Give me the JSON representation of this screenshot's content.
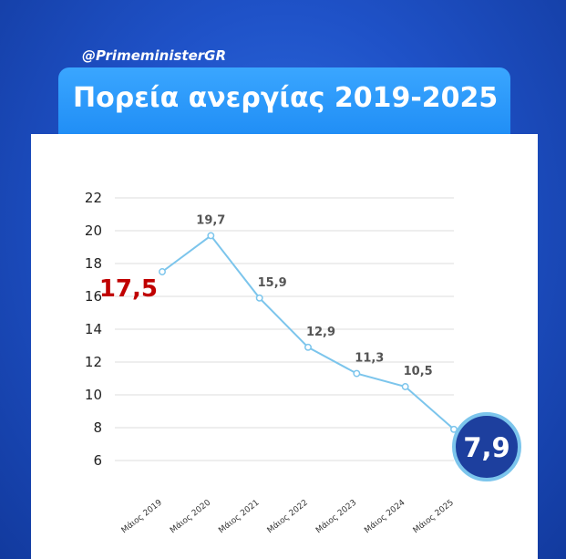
{
  "header": {
    "handle": "@PrimeministerGR",
    "title": "Πορεία ανεργίας 2019-2025"
  },
  "colors": {
    "line": "#7cc5ec",
    "highlight_first": "#c00000",
    "highlight_last": "#1d3f9e",
    "grid": "#dddddd"
  },
  "chart_data": {
    "type": "line",
    "categories": [
      "Μάιος 2019",
      "Μάιος 2020",
      "Μάιος 2021",
      "Μάιος 2022",
      "Μάιος 2023",
      "Μάιος 2024",
      "Μάιος 2025"
    ],
    "series": [
      {
        "values": [
          17.5,
          19.7,
          15.9,
          12.9,
          11.3,
          10.5,
          7.9
        ]
      }
    ],
    "data_labels": [
      "17,5",
      "19,7",
      "15,9",
      "12,9",
      "11,3",
      "10,5",
      "7,9"
    ],
    "yticks": [
      6,
      8,
      10,
      12,
      14,
      16,
      18,
      20,
      22
    ],
    "ylim": [
      6,
      22
    ],
    "grid": true,
    "legend": "none"
  }
}
